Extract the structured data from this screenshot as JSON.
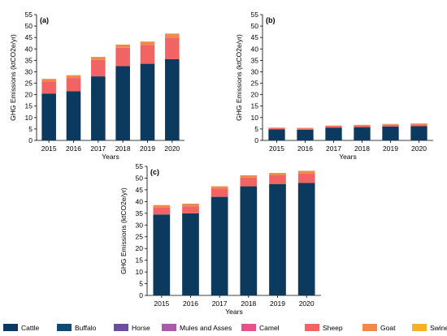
{
  "legend": [
    {
      "name": "Cattle",
      "color": "#0b3a5e"
    },
    {
      "name": "Buffalo",
      "color": "#0e4a74"
    },
    {
      "name": "Horse",
      "color": "#6b4f9e"
    },
    {
      "name": "Mules and Asses",
      "color": "#a85ba6"
    },
    {
      "name": "Camel",
      "color": "#e8508a"
    },
    {
      "name": "Sheep",
      "color": "#f26464"
    },
    {
      "name": "Goat",
      "color": "#f08a4b"
    },
    {
      "name": "Swine",
      "color": "#f6b025"
    }
  ],
  "chart_data": [
    {
      "type": "bar",
      "stacked": true,
      "panel_label": "(a)",
      "xlabel": "Years",
      "ylabel": "GHG Emissions (ktCO2e/yr)",
      "ylim": [
        0,
        55
      ],
      "yticks": [
        0,
        5,
        10,
        15,
        20,
        25,
        30,
        35,
        40,
        45,
        50,
        55
      ],
      "categories": [
        "2015",
        "2016",
        "2017",
        "2018",
        "2019",
        "2020"
      ],
      "series": [
        {
          "name": "Cattle",
          "values": [
            20.5,
            21.5,
            28,
            32.5,
            33.5,
            35.5
          ]
        },
        {
          "name": "Buffalo",
          "values": [
            0,
            0,
            0,
            0,
            0,
            0
          ]
        },
        {
          "name": "Horse",
          "values": [
            0,
            0,
            0,
            0,
            0,
            0
          ]
        },
        {
          "name": "Mules and Asses",
          "values": [
            0,
            0,
            0,
            0,
            0,
            0
          ]
        },
        {
          "name": "Camel",
          "values": [
            0,
            0,
            0,
            0,
            0,
            0
          ]
        },
        {
          "name": "Sheep",
          "values": [
            5.2,
            5.8,
            7.2,
            8,
            8.3,
            9.5
          ]
        },
        {
          "name": "Goat",
          "values": [
            1.2,
            1.2,
            1.3,
            1.4,
            1.4,
            1.7
          ]
        },
        {
          "name": "Swine",
          "values": [
            0,
            0,
            0,
            0,
            0,
            0
          ]
        }
      ]
    },
    {
      "type": "bar",
      "stacked": true,
      "panel_label": "(b)",
      "xlabel": "Years",
      "ylabel": "GHG Emissions (ktCO2e/yr)",
      "ylim": [
        0,
        55
      ],
      "yticks": [
        0,
        5,
        10,
        15,
        20,
        25,
        30,
        35,
        40,
        45,
        50,
        55
      ],
      "categories": [
        "2015",
        "2016",
        "2017",
        "2018",
        "2019",
        "2020"
      ],
      "series": [
        {
          "name": "Cattle",
          "values": [
            4.8,
            4.7,
            5.6,
            5.8,
            6.1,
            6.2
          ]
        },
        {
          "name": "Buffalo",
          "values": [
            0,
            0,
            0,
            0,
            0,
            0
          ]
        },
        {
          "name": "Horse",
          "values": [
            0,
            0,
            0,
            0,
            0,
            0
          ]
        },
        {
          "name": "Mules and Asses",
          "values": [
            0,
            0,
            0,
            0,
            0,
            0
          ]
        },
        {
          "name": "Camel",
          "values": [
            0,
            0,
            0,
            0,
            0,
            0
          ]
        },
        {
          "name": "Sheep",
          "values": [
            0.5,
            0.5,
            0.6,
            0.6,
            0.7,
            0.8
          ]
        },
        {
          "name": "Goat",
          "values": [
            0.3,
            0.3,
            0.3,
            0.4,
            0.4,
            0.4
          ]
        },
        {
          "name": "Swine",
          "values": [
            0,
            0,
            0,
            0,
            0,
            0
          ]
        }
      ]
    },
    {
      "type": "bar",
      "stacked": true,
      "panel_label": "(c)",
      "xlabel": "Years",
      "ylabel": "GHG Emissions (ktCO2e/yr)",
      "ylim": [
        0,
        55
      ],
      "yticks": [
        0,
        5,
        10,
        15,
        20,
        25,
        30,
        35,
        40,
        45,
        50,
        55
      ],
      "categories": [
        "2015",
        "2016",
        "2017",
        "2018",
        "2019",
        "2020"
      ],
      "series": [
        {
          "name": "Cattle",
          "values": [
            34.5,
            35,
            42,
            46.5,
            47.5,
            48
          ]
        },
        {
          "name": "Buffalo",
          "values": [
            0,
            0,
            0,
            0,
            0,
            0
          ]
        },
        {
          "name": "Horse",
          "values": [
            0,
            0,
            0,
            0,
            0,
            0
          ]
        },
        {
          "name": "Mules and Asses",
          "values": [
            0,
            0,
            0,
            0,
            0,
            0
          ]
        },
        {
          "name": "Camel",
          "values": [
            0,
            0,
            0,
            0,
            0,
            0
          ]
        },
        {
          "name": "Sheep",
          "values": [
            3,
            3,
            3.5,
            3.7,
            3.7,
            4
          ]
        },
        {
          "name": "Goat",
          "values": [
            1,
            1.1,
            1,
            1,
            1,
            1.1
          ]
        },
        {
          "name": "Swine",
          "values": [
            0,
            0,
            0,
            0,
            0,
            0
          ]
        }
      ]
    }
  ]
}
